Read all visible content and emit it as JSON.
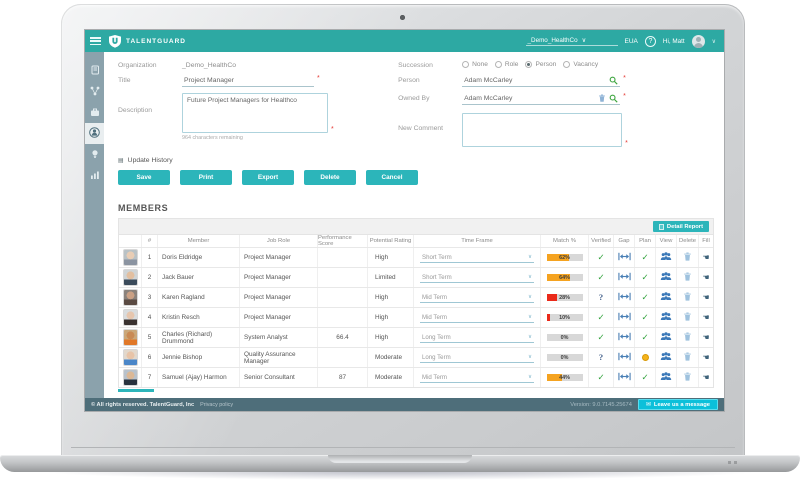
{
  "header": {
    "brand": "TALENTGUARD",
    "org_selector": "_Demo_HealthCo",
    "locale": "EUA",
    "help": "?",
    "greeting": "Hi, Matt"
  },
  "sidebar": {
    "items": [
      {
        "icon": "profile-book-icon",
        "active": false
      },
      {
        "icon": "talent-network-icon",
        "active": false
      },
      {
        "icon": "career-briefcase-icon",
        "active": false
      },
      {
        "icon": "succession-person-icon",
        "active": true
      },
      {
        "icon": "insight-bulb-icon",
        "active": false
      },
      {
        "icon": "analytics-chart-icon",
        "active": false
      }
    ]
  },
  "form": {
    "organization_label": "Organization",
    "organization_value": "_Demo_HealthCo",
    "title_label": "Title",
    "title_value": "Project Manager",
    "description_label": "Description",
    "description_value": "Future Project Managers for Healthco",
    "description_hint": "964 characters remaining",
    "succession_label": "Succession",
    "succession_options": [
      {
        "label": "None",
        "selected": false
      },
      {
        "label": "Role",
        "selected": false
      },
      {
        "label": "Person",
        "selected": true
      },
      {
        "label": "Vacancy",
        "selected": false
      }
    ],
    "person_label": "Person",
    "person_value": "Adam McCarley",
    "owned_by_label": "Owned By",
    "owned_by_value": "Adam McCarley",
    "new_comment_label": "New Comment",
    "new_comment_value": ""
  },
  "update_history_label": "Update History",
  "actions": [
    "Save",
    "Print",
    "Export",
    "Delete",
    "Cancel"
  ],
  "members": {
    "title": "MEMBERS",
    "detail_report_label": "Detail Report",
    "columns": [
      "#",
      "Member",
      "Job Role",
      "Performance Score",
      "Potential Rating",
      "Time Frame",
      "Match %",
      "Verified",
      "Gap",
      "Plan",
      "View",
      "Delete",
      "Fill"
    ],
    "rows": [
      {
        "num": "1",
        "member": "Doris Eldridge",
        "job_role": "Project Manager",
        "performance_score": "",
        "potential_rating": "High",
        "time_frame": "Short Term",
        "match_pct": 62,
        "match_level": "orange",
        "verified": "check",
        "plan": "check"
      },
      {
        "num": "2",
        "member": "Jack Bauer",
        "job_role": "Project Manager",
        "performance_score": "",
        "potential_rating": "Limited",
        "time_frame": "Short Term",
        "match_pct": 64,
        "match_level": "orange",
        "verified": "check",
        "plan": "check"
      },
      {
        "num": "3",
        "member": "Karen Ragland",
        "job_role": "Project Manager",
        "performance_score": "",
        "potential_rating": "High",
        "time_frame": "Mid Term",
        "match_pct": 28,
        "match_level": "red",
        "verified": "question",
        "plan": "check"
      },
      {
        "num": "4",
        "member": "Kristin Resch",
        "job_role": "Project Manager",
        "performance_score": "",
        "potential_rating": "High",
        "time_frame": "Mid Term",
        "match_pct": 10,
        "match_level": "red",
        "verified": "check",
        "plan": "check"
      },
      {
        "num": "5",
        "member": "Charles (Richard) Drummond",
        "job_role": "System Analyst",
        "performance_score": "66.4",
        "potential_rating": "High",
        "time_frame": "Long Term",
        "match_pct": 0,
        "match_level": "none",
        "verified": "check",
        "plan": "check"
      },
      {
        "num": "6",
        "member": "Jennie Bishop",
        "job_role": "Quality Assurance Manager",
        "performance_score": "",
        "potential_rating": "Moderate",
        "time_frame": "Long Term",
        "match_pct": 0,
        "match_level": "none",
        "verified": "question",
        "plan": "pending"
      },
      {
        "num": "7",
        "member": "Samuel (Ajay) Harmon",
        "job_role": "Senior Consultant",
        "performance_score": "87",
        "potential_rating": "Moderate",
        "time_frame": "Mid Term",
        "match_pct": 44,
        "match_level": "orange",
        "verified": "check",
        "plan": "check"
      }
    ]
  },
  "footer": {
    "copyright": "© All rights reserved. TalentGuard, Inc",
    "privacy": "Privacy policy",
    "version": "Version: 9.0.7145.25674",
    "chat_label": "Leave us a message"
  },
  "colors": {
    "accent_teal": "#2da9a3",
    "button_teal": "#2cb5ba",
    "bar_orange": "#f5a320",
    "bar_red": "#ea2a1a",
    "footer_bg": "#4e6e7a",
    "chat_cyan": "#0cc0da",
    "verified_green": "#2fa13a",
    "pending_yellow": "#f5b31c"
  }
}
